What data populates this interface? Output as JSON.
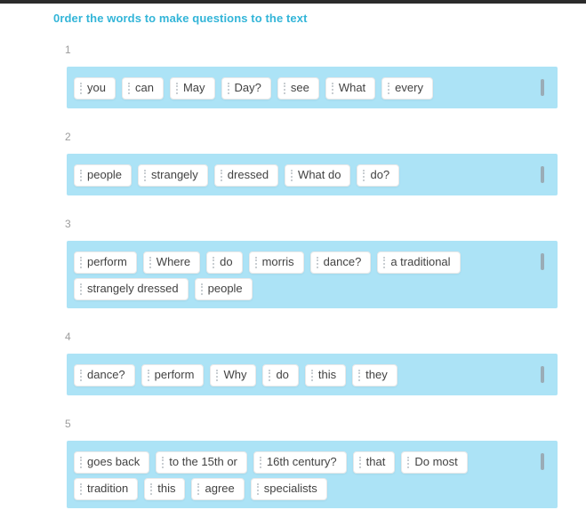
{
  "page": {
    "title": "0rder the words to make questions to the text"
  },
  "colors": {
    "accent_title": "#33b5d8",
    "bar_background": "#ace3f6",
    "top_border": "#2b2b2b",
    "exercise_number": "#9c9c9c",
    "chip_text": "#424242",
    "bar_handle": "#969ea6"
  },
  "icons": {
    "chip_drag_handle": "dotted-vertical-grip",
    "bar_drag_handle": "vertical-bar-grip"
  },
  "exercises": [
    {
      "number": "1",
      "words": [
        "you",
        "can",
        "May",
        "Day?",
        "see",
        "What",
        "every"
      ]
    },
    {
      "number": "2",
      "words": [
        "people",
        "strangely",
        "dressed",
        "What do",
        "do?"
      ]
    },
    {
      "number": "3",
      "words": [
        "perform",
        "Where",
        "do",
        "morris",
        "dance?",
        "a traditional",
        "strangely dressed",
        "people"
      ]
    },
    {
      "number": "4",
      "words": [
        "dance?",
        "perform",
        "Why",
        "do",
        "this",
        "they"
      ]
    },
    {
      "number": "5",
      "words": [
        "goes back",
        "to the 15th or",
        "16th century?",
        "that",
        "Do most",
        "tradition",
        "this",
        "agree",
        "specialists"
      ]
    }
  ]
}
